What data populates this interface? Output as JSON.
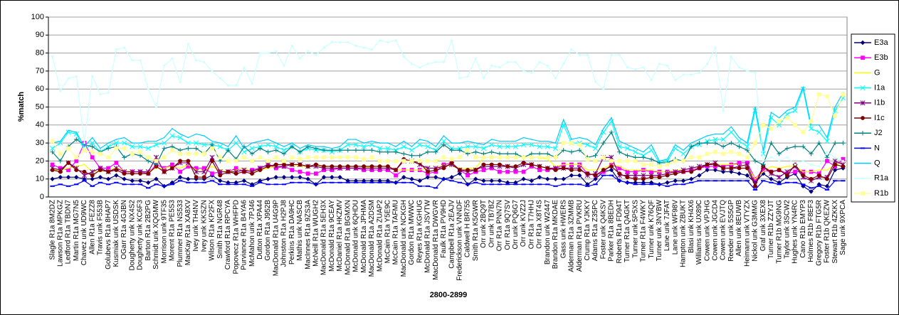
{
  "chart_data": {
    "type": "line",
    "x_label": "2800-2899",
    "y_label": "%match",
    "ylim": [
      0,
      100
    ],
    "yticks": [
      0,
      10,
      20,
      30,
      40,
      50,
      60,
      70,
      80,
      90,
      100
    ],
    "grid": true,
    "legend": "right",
    "categories": [
      "Slagle R1a 8M2DZ",
      "Lawson R1a MPKGZ",
      "Ledford R1a TBDN7",
      "Martin R1a MG7N5",
      "Chavez unk UD9WC",
      "Allen R1a FEZZ8",
      "Travis unk F553B",
      "Golubevs R1a 8HAP7",
      "Kusmiak unk USDSK",
      "OGarr R1a 4GJBN",
      "Dougherty unk NX4S2",
      "Dougherty unk KC6F3",
      "Barton R1a 2B2PG",
      "Schmidt unk XQGMW",
      "Morrison unk 9TF35",
      "Morent R1a PE5S3",
      "Plummer R1a NS533",
      "MacKay R1a XA8XV",
      "Ivey unk TH4NV",
      "Ivey unk KKSZN",
      "Wilson R1a KP2FX",
      "Smith R1a NGR48",
      "Crawford R1a RPCYA",
      "Popovecz R1a WHFPD",
      "Purviance R1a B4YA6",
      "McMahon unk 7PJ46",
      "Dutton R1a XPA44",
      "Gordon R1a J952B",
      "MacDonald R1a U4G9P",
      "Johnston R1a H2PJ8",
      "Perkins R1a DA9HC",
      "Mathis unk NASCB",
      "MacInnes R1a 9ZS3A",
      "McNeill R1a WUGH2",
      "MacDonald R1a 5EH3X",
      "McDonald R1a 9CEAY",
      "McDaniel R1a HKZMV",
      "McDonald R1a BGMXN",
      "McDonald unk 6QHDU",
      "McDonald R1a JPHMA",
      "MacDonald R1a A2DSM",
      "McDonald R1a ZUAP2",
      "McCain R1a Y5E9C",
      "McCain R1a TAFMU",
      "MacDonald unk NCKGH",
      "Gordon R1a MWWC",
      "Reyes R1a KGHUG",
      "McDonald R1a JSVTW",
      "MacDonald R1a DWGVR",
      "Faulk R1a PV9HD",
      "Campbell R1a 2EAJV",
      "Frederickson unk VNNDF",
      "Caldwell H BR755",
      "Smith R1a K5GWR",
      "Orr unk 2BQ9T",
      "Orr unk TB7BZ",
      "Orr R1a PNN7N",
      "Orr R1a 9Q7SV",
      "Orr unk PQ6G7",
      "Orr unk KVZ2J",
      "Orr R1a T7HHJ",
      "Orr R1a X8T4S",
      "Brandon unk W2447",
      "Brandon R1a MKDAE",
      "Gass unk HWERS",
      "Alderman R1a 3ZMMB",
      "Alderman R1a PVKRU",
      "Crump R1a YJKKY",
      "Adams R1a Z35PC",
      "Foster unk Q4KSV",
      "Parker R1a 8BEDH",
      "Roberts R1a FD94T",
      "Turner R1a QAGKT",
      "Turner unk 5P5XS",
      "Turner R1a F4WKY",
      "Turner unk K76QF",
      "Turner unk 3NYBW",
      "Lane unk 7JFAT",
      "Lane unk WF98V",
      "Hampton unk ZBUKT",
      "Blasi unk KH4X6",
      "Williams unk UX89C",
      "Cowen unk VPJHG",
      "Cowen unk JGCD4",
      "Cowen unk EVJTQ",
      "Reeder unk 5S5GP",
      "Allen unk 8EUWB",
      "Heimann unk VTYZX",
      "Nickol unk G3MMG",
      "Graf unk 3XEX8",
      "Turner R1b ZZYJT",
      "Turner R1b MG9NG",
      "Taylor unk 3SCW2",
      "Hughes unk YN4RC",
      "Cano R1b EMYP3",
      "Holmes R1b F8EF3",
      "Gregory R1b FTG5R",
      "Foster R1b QKEZW",
      "Stewart R1b 4ZKKX",
      "Sage unk 9XPCA"
    ],
    "series": [
      {
        "name": "E3a",
        "color": "#000080",
        "marker": "diamond",
        "values": [
          10,
          11,
          11,
          11,
          10,
          10,
          11,
          10,
          12,
          10,
          9,
          9,
          8,
          10,
          6,
          8,
          11,
          10,
          10,
          10,
          12,
          9,
          8,
          8,
          9,
          7,
          9,
          10,
          11,
          11,
          11,
          11,
          10,
          7,
          11,
          11,
          11,
          9,
          9,
          9,
          9,
          9,
          9,
          8,
          11,
          10,
          9,
          11,
          11,
          10,
          11,
          13,
          7,
          10,
          9,
          9,
          9,
          8,
          8,
          10,
          9,
          11,
          10,
          10,
          10,
          12,
          12,
          7,
          10,
          14,
          15,
          9,
          8,
          8,
          8,
          8,
          7,
          8,
          9,
          9,
          10,
          12,
          15,
          15,
          14,
          14,
          13,
          12,
          8,
          13,
          10,
          8,
          11,
          13,
          6,
          3,
          7,
          6,
          15,
          16
        ]
      },
      {
        "name": "E3b",
        "color": "#ff00ff",
        "marker": "square",
        "values": [
          18,
          16,
          15,
          20,
          30,
          22,
          16,
          16,
          19,
          14,
          14,
          14,
          13,
          18,
          16,
          18,
          14,
          17,
          16,
          16,
          13,
          14,
          14,
          16,
          14,
          15,
          16,
          18,
          16,
          17,
          15,
          14,
          13,
          13,
          15,
          15,
          16,
          16,
          16,
          15,
          15,
          15,
          15,
          12,
          15,
          15,
          15,
          13,
          14,
          18,
          19,
          15,
          12,
          14,
          15,
          16,
          14,
          14,
          14,
          14,
          17,
          15,
          15,
          16,
          18,
          18,
          18,
          13,
          12,
          14,
          18,
          16,
          14,
          14,
          15,
          14,
          14,
          14,
          14,
          14,
          15,
          16,
          17,
          17,
          17,
          18,
          19,
          19,
          10,
          15,
          14,
          15,
          13,
          14,
          14,
          14,
          13,
          20,
          17,
          21
        ]
      },
      {
        "name": "G",
        "color": "#ffff00",
        "marker": "none",
        "values": [
          15,
          15,
          16,
          17,
          18,
          14,
          14,
          15,
          16,
          15,
          14,
          14,
          14,
          16,
          16,
          17,
          16,
          18,
          15,
          15,
          17,
          15,
          14,
          15,
          16,
          14,
          15,
          16,
          17,
          17,
          18,
          17,
          17,
          17,
          17,
          17,
          17,
          17,
          17,
          17,
          16,
          16,
          16,
          15,
          15,
          15,
          15,
          16,
          16,
          18,
          17,
          16,
          16,
          16,
          22,
          22,
          22,
          22,
          22,
          22,
          22,
          22,
          21,
          17,
          18,
          18,
          18,
          15,
          15,
          16,
          18,
          17,
          15,
          15,
          15,
          15,
          14,
          14,
          15,
          15,
          16,
          17,
          18,
          18,
          18,
          18,
          18,
          17,
          10,
          14,
          17,
          16,
          17,
          17,
          14,
          14,
          15,
          15,
          18,
          19
        ]
      },
      {
        "name": "I1a",
        "color": "#00ffff",
        "marker": "x",
        "values": [
          27,
          30,
          36,
          35,
          26,
          30,
          25,
          28,
          30,
          30,
          28,
          28,
          27,
          29,
          30,
          34,
          33,
          30,
          30,
          29,
          29,
          28,
          26,
          30,
          25,
          27,
          28,
          29,
          28,
          26,
          28,
          25,
          27,
          26,
          26,
          25,
          26,
          29,
          29,
          28,
          29,
          27,
          27,
          26,
          28,
          26,
          29,
          28,
          26,
          31,
          27,
          27,
          28,
          28,
          27,
          29,
          28,
          28,
          28,
          29,
          29,
          28,
          28,
          27,
          40,
          30,
          30,
          29,
          27,
          36,
          42,
          28,
          27,
          25,
          23,
          26,
          19,
          20,
          27,
          24,
          28,
          29,
          31,
          32,
          32,
          36,
          31,
          28,
          48,
          24,
          44,
          40,
          46,
          48,
          60,
          38,
          36,
          31,
          48,
          55
        ]
      },
      {
        "name": "I1b",
        "color": "#800080",
        "marker": "star",
        "values": [
          16,
          15,
          19,
          16,
          12,
          14,
          16,
          14,
          16,
          14,
          14,
          14,
          14,
          22,
          14,
          16,
          19,
          19,
          14,
          14,
          22,
          14,
          14,
          14,
          15,
          14,
          16,
          18,
          17,
          17,
          18,
          18,
          17,
          17,
          16,
          16,
          16,
          16,
          16,
          16,
          16,
          16,
          16,
          15,
          20,
          20,
          18,
          16,
          16,
          17,
          18,
          15,
          14,
          15,
          17,
          17,
          17,
          17,
          16,
          18,
          18,
          17,
          16,
          16,
          16,
          16,
          16,
          12,
          13,
          22,
          22,
          12,
          12,
          12,
          12,
          12,
          12,
          13,
          14,
          15,
          16,
          17,
          18,
          19,
          16,
          16,
          17,
          18,
          7,
          17,
          13,
          11,
          14,
          17,
          11,
          9,
          11,
          11,
          20,
          18
        ]
      },
      {
        "name": "I1c",
        "color": "#800000",
        "marker": "circle",
        "values": [
          15,
          14,
          19,
          15,
          14,
          12,
          15,
          14,
          15,
          13,
          13,
          13,
          13,
          17,
          14,
          16,
          20,
          20,
          11,
          11,
          20,
          12,
          14,
          13,
          14,
          13,
          15,
          17,
          18,
          18,
          18,
          18,
          17,
          18,
          17,
          17,
          17,
          17,
          17,
          17,
          17,
          17,
          17,
          15,
          21,
          20,
          19,
          14,
          15,
          16,
          19,
          15,
          15,
          15,
          18,
          18,
          18,
          17,
          17,
          19,
          18,
          17,
          16,
          15,
          16,
          15,
          15,
          13,
          12,
          15,
          17,
          13,
          11,
          10,
          10,
          11,
          11,
          12,
          13,
          14,
          14,
          16,
          18,
          18,
          16,
          16,
          16,
          16,
          6,
          17,
          14,
          15,
          12,
          18,
          12,
          10,
          12,
          10,
          18,
          17
        ]
      },
      {
        "name": "J2",
        "color": "#008080",
        "marker": "plus",
        "values": [
          25,
          20,
          28,
          32,
          29,
          28,
          25,
          27,
          28,
          22,
          24,
          23,
          20,
          18,
          27,
          28,
          26,
          27,
          27,
          24,
          29,
          20,
          26,
          21,
          28,
          24,
          27,
          25,
          26,
          24,
          28,
          25,
          28,
          27,
          26,
          26,
          26,
          26,
          26,
          26,
          26,
          25,
          25,
          25,
          24,
          23,
          23,
          25,
          25,
          29,
          26,
          26,
          24,
          25,
          24,
          25,
          24,
          24,
          24,
          22,
          24,
          24,
          24,
          22,
          26,
          25,
          26,
          22,
          23,
          30,
          36,
          25,
          23,
          22,
          22,
          21,
          19,
          19,
          21,
          20,
          28,
          30,
          30,
          30,
          28,
          30,
          28,
          26,
          20,
          18,
          30,
          24,
          27,
          28,
          28,
          24,
          30,
          22,
          30,
          30
        ]
      },
      {
        "name": "N",
        "color": "#0000ff",
        "marker": "dash",
        "values": [
          6,
          7,
          6,
          7,
          9,
          6,
          8,
          7,
          8,
          7,
          7,
          7,
          5,
          7,
          6,
          7,
          9,
          8,
          8,
          8,
          9,
          7,
          7,
          7,
          7,
          6,
          8,
          7,
          7,
          7,
          8,
          8,
          8,
          7,
          8,
          8,
          8,
          8,
          8,
          8,
          8,
          8,
          8,
          8,
          8,
          8,
          6,
          6,
          5,
          10,
          9,
          8,
          7,
          8,
          7,
          7,
          7,
          7,
          7,
          7,
          7,
          7,
          7,
          6,
          7,
          7,
          7,
          6,
          7,
          12,
          12,
          9,
          8,
          7,
          7,
          7,
          7,
          6,
          7,
          7,
          8,
          9,
          9,
          9,
          9,
          9,
          9,
          9,
          4,
          9,
          8,
          7,
          8,
          8,
          7,
          5,
          6,
          4,
          9,
          9
        ]
      },
      {
        "name": "Q",
        "color": "#00ccff",
        "marker": "none",
        "values": [
          30,
          31,
          37,
          36,
          28,
          33,
          27,
          30,
          32,
          33,
          30,
          30,
          31,
          31,
          33,
          38,
          35,
          33,
          35,
          34,
          31,
          30,
          28,
          34,
          27,
          30,
          31,
          32,
          30,
          28,
          30,
          27,
          29,
          28,
          28,
          27,
          28,
          32,
          32,
          30,
          31,
          30,
          30,
          28,
          31,
          28,
          32,
          31,
          28,
          34,
          30,
          30,
          31,
          30,
          29,
          32,
          31,
          31,
          31,
          33,
          32,
          31,
          31,
          30,
          43,
          32,
          33,
          32,
          29,
          38,
          44,
          31,
          29,
          27,
          25,
          29,
          20,
          21,
          29,
          26,
          30,
          32,
          34,
          35,
          35,
          39,
          33,
          30,
          50,
          26,
          47,
          44,
          48,
          50,
          61,
          40,
          40,
          33,
          50,
          58
        ]
      },
      {
        "name": "R1a",
        "color": "#ccffff",
        "marker": "dot",
        "values": [
          78,
          59,
          66,
          67,
          30,
          67,
          57,
          58,
          82,
          83,
          76,
          76,
          60,
          50,
          73,
          77,
          64,
          85,
          76,
          75,
          70,
          66,
          62,
          62,
          72,
          63,
          80,
          80,
          81,
          73,
          84,
          77,
          81,
          79,
          83,
          86,
          86,
          86,
          84,
          83,
          82,
          87,
          86,
          87,
          78,
          74,
          72,
          74,
          75,
          75,
          87,
          66,
          67,
          77,
          66,
          73,
          72,
          75,
          75,
          70,
          69,
          75,
          73,
          66,
          74,
          82,
          79,
          79,
          64,
          60,
          79,
          79,
          72,
          71,
          72,
          65,
          74,
          73,
          65,
          68,
          68,
          69,
          74,
          83,
          48,
          78,
          72,
          70,
          69,
          20,
          22,
          20,
          22,
          18,
          20,
          18,
          17,
          25,
          22,
          20
        ]
      },
      {
        "name": "R1b",
        "color": "#ffff99",
        "marker": "square",
        "values": [
          31,
          24,
          27,
          22,
          26,
          25,
          24,
          22,
          27,
          27,
          24,
          25,
          22,
          20,
          22,
          26,
          24,
          24,
          24,
          24,
          27,
          22,
          20,
          20,
          22,
          20,
          22,
          20,
          22,
          20,
          22,
          21,
          22,
          22,
          22,
          22,
          22,
          22,
          22,
          21,
          22,
          20,
          20,
          20,
          20,
          20,
          20,
          20,
          20,
          22,
          21,
          22,
          26,
          22,
          22,
          22,
          22,
          22,
          22,
          22,
          22,
          22,
          22,
          22,
          30,
          30,
          29,
          21,
          20,
          22,
          20,
          20,
          20,
          20,
          18,
          18,
          17,
          18,
          20,
          20,
          22,
          22,
          24,
          25,
          24,
          25,
          24,
          22,
          30,
          40,
          38,
          42,
          44,
          40,
          36,
          42,
          57,
          56,
          45,
          57
        ]
      }
    ]
  }
}
